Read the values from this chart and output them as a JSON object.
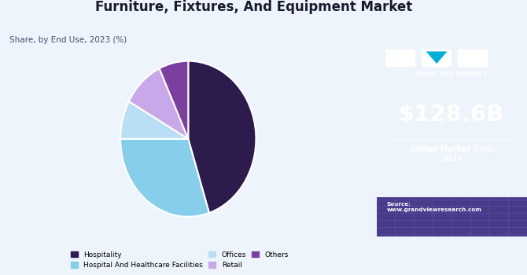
{
  "title": "Furniture, Fixtures, And Equipment Market",
  "subtitle": "Share, by End Use, 2023 (%)",
  "slices": [
    {
      "label": "Hospitality",
      "value": 45,
      "color": "#2d1b4e"
    },
    {
      "label": "Hospital And Healthcare Facilities",
      "value": 30,
      "color": "#87CEEB"
    },
    {
      "label": "Offices",
      "value": 8,
      "color": "#b8dff5"
    },
    {
      "label": "Retail",
      "value": 10,
      "color": "#c8a8e8"
    },
    {
      "label": "Others",
      "value": 7,
      "color": "#7B3FA0"
    }
  ],
  "sidebar_bg": "#3d1f6e",
  "sidebar_value": "$128.6B",
  "sidebar_label": "Global Market Size,\n2023",
  "sidebar_source": "Source:\nwww.grandviewresearch.com",
  "chart_bg": "#eef4fb",
  "title_color": "#1a1a2e",
  "subtitle_color": "#4a4a6a",
  "logo_color": "#00b0d8",
  "grid_bottom_bg": "#4a3a8a"
}
